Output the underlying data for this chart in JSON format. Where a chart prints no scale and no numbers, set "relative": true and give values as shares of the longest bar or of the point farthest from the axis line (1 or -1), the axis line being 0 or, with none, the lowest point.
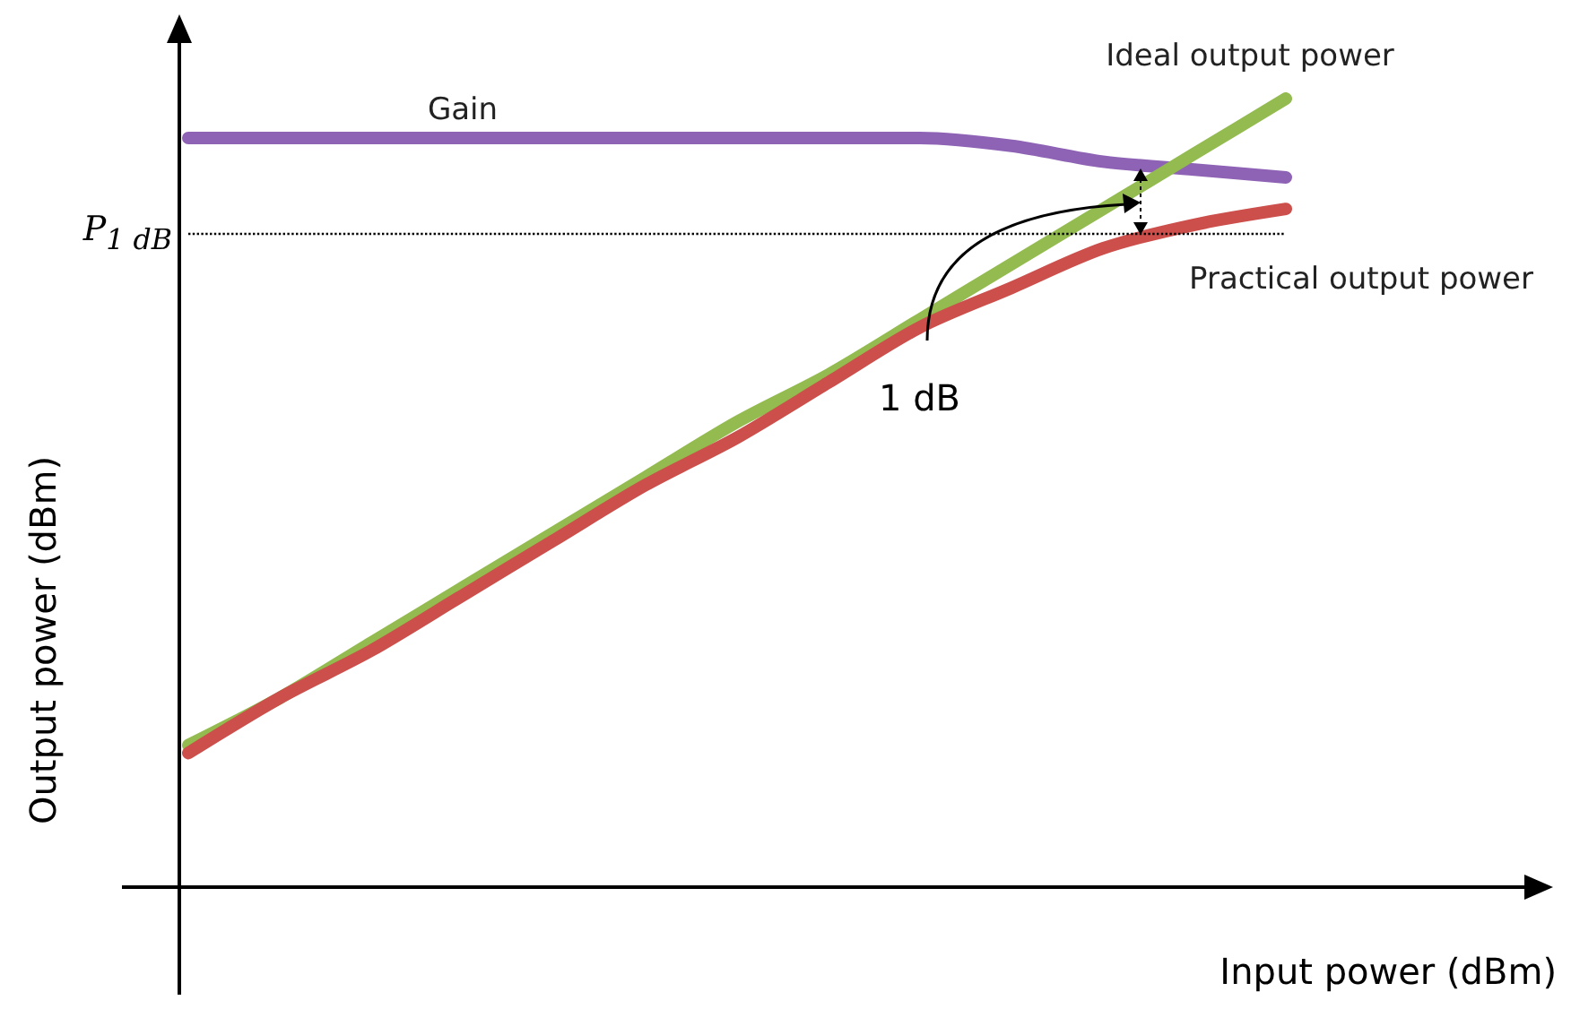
{
  "chart_data": {
    "type": "line",
    "relative": true,
    "xlabel": "Input power (dBm)",
    "ylabel": "Output power (dBm)",
    "categories": [
      null,
      null,
      null,
      null,
      null,
      null,
      null,
      null,
      null,
      null,
      null,
      null,
      null
    ],
    "series": [
      {
        "name": "Gain",
        "color": "#8e63b5",
        "values": [
          0.95,
          0.95,
          0.95,
          0.95,
          0.95,
          0.95,
          0.95,
          0.95,
          0.95,
          0.94,
          0.92,
          0.91,
          0.9
        ]
      },
      {
        "name": "Ideal output power",
        "color": "#93bb4f",
        "values": [
          0.18,
          0.24,
          0.31,
          0.38,
          0.45,
          0.52,
          0.59,
          0.65,
          0.72,
          0.79,
          0.86,
          0.93,
          1
        ]
      },
      {
        "name": "Practical output power",
        "color": "#cc4f4c",
        "values": [
          0.17,
          0.24,
          0.3,
          0.37,
          0.44,
          0.51,
          0.57,
          0.64,
          0.71,
          0.76,
          0.81,
          0.84,
          0.86
        ]
      }
    ],
    "ref_lines": [
      {
        "axis": "y",
        "value": 0.83,
        "label": "P$_{1 dB}$",
        "line_style": "dotted",
        "color": "#000000"
      }
    ],
    "annotations": [
      "1 dB"
    ],
    "legend": false,
    "grid": false,
    "marker": "none",
    "line_style": "solid"
  }
}
